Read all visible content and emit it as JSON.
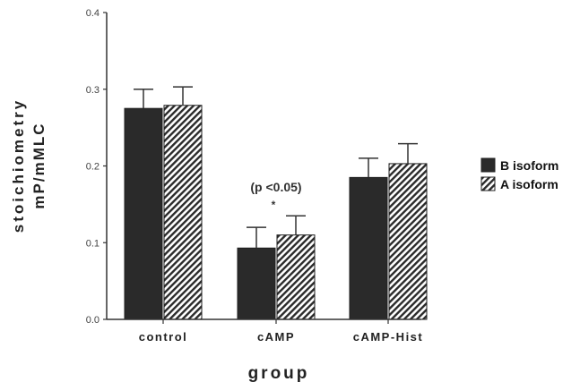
{
  "chart_data": {
    "type": "bar",
    "categories": [
      "control",
      "cAMP",
      "cAMP-Hist"
    ],
    "series": [
      {
        "name": "B isoform",
        "values": [
          0.275,
          0.093,
          0.185
        ],
        "errors": [
          0.025,
          0.027,
          0.025
        ],
        "pattern": "solid",
        "color": "#2a2a2a"
      },
      {
        "name": "A isoform",
        "values": [
          0.279,
          0.11,
          0.203
        ],
        "errors": [
          0.024,
          0.025,
          0.026
        ],
        "pattern": "diagonal-hatch",
        "color": "#2a2a2a"
      }
    ],
    "xlabel": "group",
    "ylabel_lines": [
      "stoichiometry",
      "mP/mMLC"
    ],
    "ylim": [
      0,
      0.4
    ],
    "yticks": [
      "0.0",
      "0.1",
      "0.2",
      "0.3",
      "0.4"
    ],
    "grid": false,
    "legend_position": "right",
    "annotations": [
      {
        "text": "(p  <0.05)",
        "category": "cAMP"
      },
      {
        "text": "*",
        "category": "cAMP"
      }
    ]
  }
}
